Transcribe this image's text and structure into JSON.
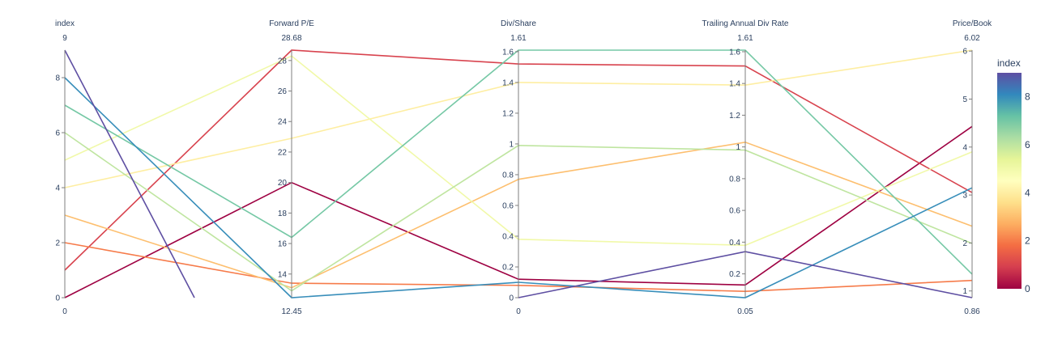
{
  "chart_data": {
    "type": "parallel-coordinates",
    "color_by": "index",
    "colorscale": "Spectral",
    "dimensions": [
      {
        "label": "index",
        "range": [
          0,
          9
        ],
        "range_labels": [
          "0",
          "9"
        ],
        "ticks": [
          0,
          2,
          4,
          6,
          8
        ],
        "tick_labels": [
          "0",
          "2",
          "4",
          "6",
          "8"
        ]
      },
      {
        "label": "Forward P/E",
        "range": [
          12.45,
          28.68
        ],
        "range_labels": [
          "12.45",
          "28.68"
        ],
        "ticks": [
          14,
          16,
          18,
          20,
          22,
          24,
          26,
          28
        ],
        "tick_labels": [
          "14",
          "16",
          "18",
          "20",
          "22",
          "24",
          "26",
          "28"
        ]
      },
      {
        "label": "Div/Share",
        "range": [
          0,
          1.61
        ],
        "range_labels": [
          "0",
          "1.61"
        ],
        "ticks": [
          0,
          0.2,
          0.4,
          0.6,
          0.8,
          1,
          1.2,
          1.4,
          1.6
        ],
        "tick_labels": [
          "0",
          "0.2",
          "0.4",
          "0.6",
          "0.8",
          "1",
          "1.2",
          "1.4",
          "1.6"
        ]
      },
      {
        "label": "Trailing Annual Div Rate",
        "range": [
          0.05,
          1.61
        ],
        "range_labels": [
          "0.05",
          "1.61"
        ],
        "ticks": [
          0.2,
          0.4,
          0.6,
          0.8,
          1,
          1.2,
          1.4,
          1.6
        ],
        "tick_labels": [
          "0.2",
          "0.4",
          "0.6",
          "0.8",
          "1",
          "1.2",
          "1.4",
          "1.6"
        ]
      },
      {
        "label": "Price/Book",
        "range": [
          0.86,
          6.02
        ],
        "range_labels": [
          "0.86",
          "6.02"
        ],
        "ticks": [
          1,
          2,
          3,
          4,
          5,
          6
        ],
        "tick_labels": [
          "1",
          "2",
          "3",
          "4",
          "5",
          "6"
        ]
      }
    ],
    "rows": [
      {
        "index": 0,
        "values": [
          0,
          20.0,
          0.12,
          0.13,
          4.43
        ]
      },
      {
        "index": 1,
        "values": [
          1,
          28.68,
          1.52,
          1.51,
          3.05
        ]
      },
      {
        "index": 2,
        "values": [
          2,
          13.4,
          0.08,
          0.09,
          1.22
        ]
      },
      {
        "index": 3,
        "values": [
          3,
          13.1,
          0.77,
          1.03,
          2.35
        ]
      },
      {
        "index": 4,
        "values": [
          4,
          22.9,
          1.4,
          1.39,
          6.02
        ]
      },
      {
        "index": 5,
        "values": [
          5,
          28.3,
          0.38,
          0.38,
          3.9
        ]
      },
      {
        "index": 6,
        "values": [
          6,
          12.9,
          0.99,
          0.98,
          1.99
        ]
      },
      {
        "index": 7,
        "values": [
          7,
          16.4,
          1.61,
          1.61,
          1.35
        ]
      },
      {
        "index": 8,
        "values": [
          8,
          12.45,
          0.1,
          0.05,
          3.15
        ]
      },
      {
        "index": 9,
        "values": [
          9,
          null,
          0.0,
          0.34,
          0.86
        ]
      }
    ],
    "extra_segments": [
      {
        "index": 9,
        "from_dim": 0,
        "value": 9,
        "end_index_value": 0
      }
    ],
    "colorbar": {
      "title": "index",
      "range": [
        0,
        9
      ],
      "ticks": [
        0,
        2,
        4,
        6,
        8
      ],
      "tick_labels": [
        "0",
        "2",
        "4",
        "6",
        "8"
      ]
    }
  }
}
